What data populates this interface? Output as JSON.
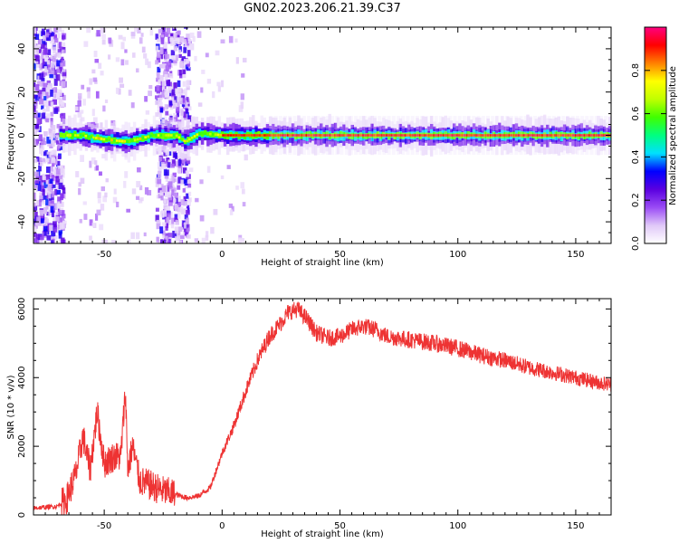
{
  "title": "GN02.2023.206.21.39.C37",
  "chart_data": [
    {
      "type": "heatmap",
      "xlabel": "Height of straight line (km)",
      "ylabel": "Frequency (Hz)",
      "xlim": [
        -80,
        165
      ],
      "ylim": [
        -50,
        50
      ],
      "x_ticks": [
        -50,
        0,
        50,
        100,
        150
      ],
      "y_ticks": [
        -40,
        -20,
        0,
        20,
        40
      ],
      "colorbar": {
        "label": "Normalized spectral amplitude",
        "range": [
          0,
          1
        ],
        "ticks": [
          "0.0",
          "0.2",
          "0.4",
          "0.6",
          "0.8"
        ],
        "colors": [
          "#ffffff",
          "#e0c8f8",
          "#9a4bf5",
          "#5a00e0",
          "#0000ff",
          "#00e0ff",
          "#00ff80",
          "#40ff00",
          "#c0ff00",
          "#ffff00",
          "#ff8000",
          "#ff0000",
          "#ff0080"
        ]
      },
      "ridge": {
        "description_free": true,
        "points": [
          [
            -68,
            0
          ],
          [
            -60,
            0
          ],
          [
            -50,
            -2
          ],
          [
            -40,
            -3
          ],
          [
            -30,
            0
          ],
          [
            -25,
            0
          ],
          [
            -20,
            0
          ],
          [
            -16,
            -3
          ],
          [
            -10,
            1
          ],
          [
            0,
            0
          ],
          [
            25,
            0
          ],
          [
            50,
            0
          ],
          [
            75,
            0
          ],
          [
            90,
            0
          ],
          [
            100,
            0
          ],
          [
            110,
            0
          ],
          [
            130,
            0
          ],
          [
            150,
            0
          ],
          [
            165,
            0
          ]
        ]
      }
    },
    {
      "type": "line",
      "xlabel": "Height of straight line (km)",
      "ylabel": "SNR (10 * v/v)",
      "xlim": [
        -80,
        165
      ],
      "ylim": [
        0,
        6300
      ],
      "x_ticks": [
        -50,
        0,
        50,
        100,
        150
      ],
      "y_ticks": [
        0,
        2000,
        4000,
        6000
      ],
      "color": "#ee3333",
      "x": [
        -80,
        -70,
        -66,
        -62,
        -59,
        -56,
        -53,
        -50,
        -46,
        -43,
        -41,
        -40,
        -38,
        -35,
        -30,
        -25,
        -20,
        -15,
        -10,
        -5,
        0,
        5,
        10,
        15,
        20,
        25,
        28,
        32,
        36,
        40,
        45,
        50,
        55,
        60,
        65,
        70,
        80,
        90,
        100,
        110,
        120,
        130,
        140,
        150,
        160,
        165
      ],
      "values": [
        200,
        250,
        450,
        1200,
        2300,
        1300,
        3000,
        1500,
        1700,
        1700,
        3600,
        1300,
        2000,
        1000,
        850,
        700,
        600,
        500,
        550,
        800,
        1800,
        2600,
        3600,
        4500,
        5200,
        5600,
        5900,
        6000,
        5700,
        5300,
        5150,
        5200,
        5400,
        5500,
        5400,
        5200,
        5100,
        5000,
        4850,
        4650,
        4500,
        4300,
        4150,
        4000,
        3850,
        3800
      ]
    }
  ]
}
